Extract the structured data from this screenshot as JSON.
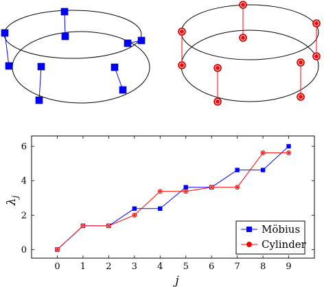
{
  "colors": {
    "mobius": "#0000ff",
    "cylinder": "#ff0000",
    "frame": "#000000"
  },
  "diagrams": [
    {
      "kind": "mobius-strip-graph",
      "marker": "square",
      "color": "#0000ff"
    },
    {
      "kind": "cylinder-graph",
      "marker": "circle",
      "color": "#ff0000"
    }
  ],
  "chart_data": {
    "type": "line",
    "xlabel": "j",
    "ylabel": "λ",
    "ylabel_sub": "j",
    "xlim": [
      -1,
      10
    ],
    "ylim": [
      -0.5,
      6.6
    ],
    "xticks": [
      0,
      1,
      2,
      3,
      4,
      5,
      6,
      7,
      8,
      9
    ],
    "yticks": [
      0,
      2,
      4,
      6
    ],
    "legend_position": "bottom-right",
    "series": [
      {
        "name": "Möbius",
        "color": "#0000ff",
        "marker": "square",
        "x": [
          0,
          1,
          2,
          3,
          4,
          5,
          6,
          7,
          8,
          9
        ],
        "y": [
          0,
          1.38,
          1.38,
          2.38,
          2.38,
          3.62,
          3.62,
          4.62,
          4.62,
          6.0
        ]
      },
      {
        "name": "Cylinder",
        "color": "#ff0000",
        "marker": "circle",
        "x": [
          0,
          1,
          2,
          3,
          4,
          5,
          6,
          7,
          8,
          9
        ],
        "y": [
          0,
          1.38,
          1.38,
          2.0,
          3.38,
          3.38,
          3.62,
          3.62,
          5.62,
          5.62
        ]
      }
    ]
  }
}
